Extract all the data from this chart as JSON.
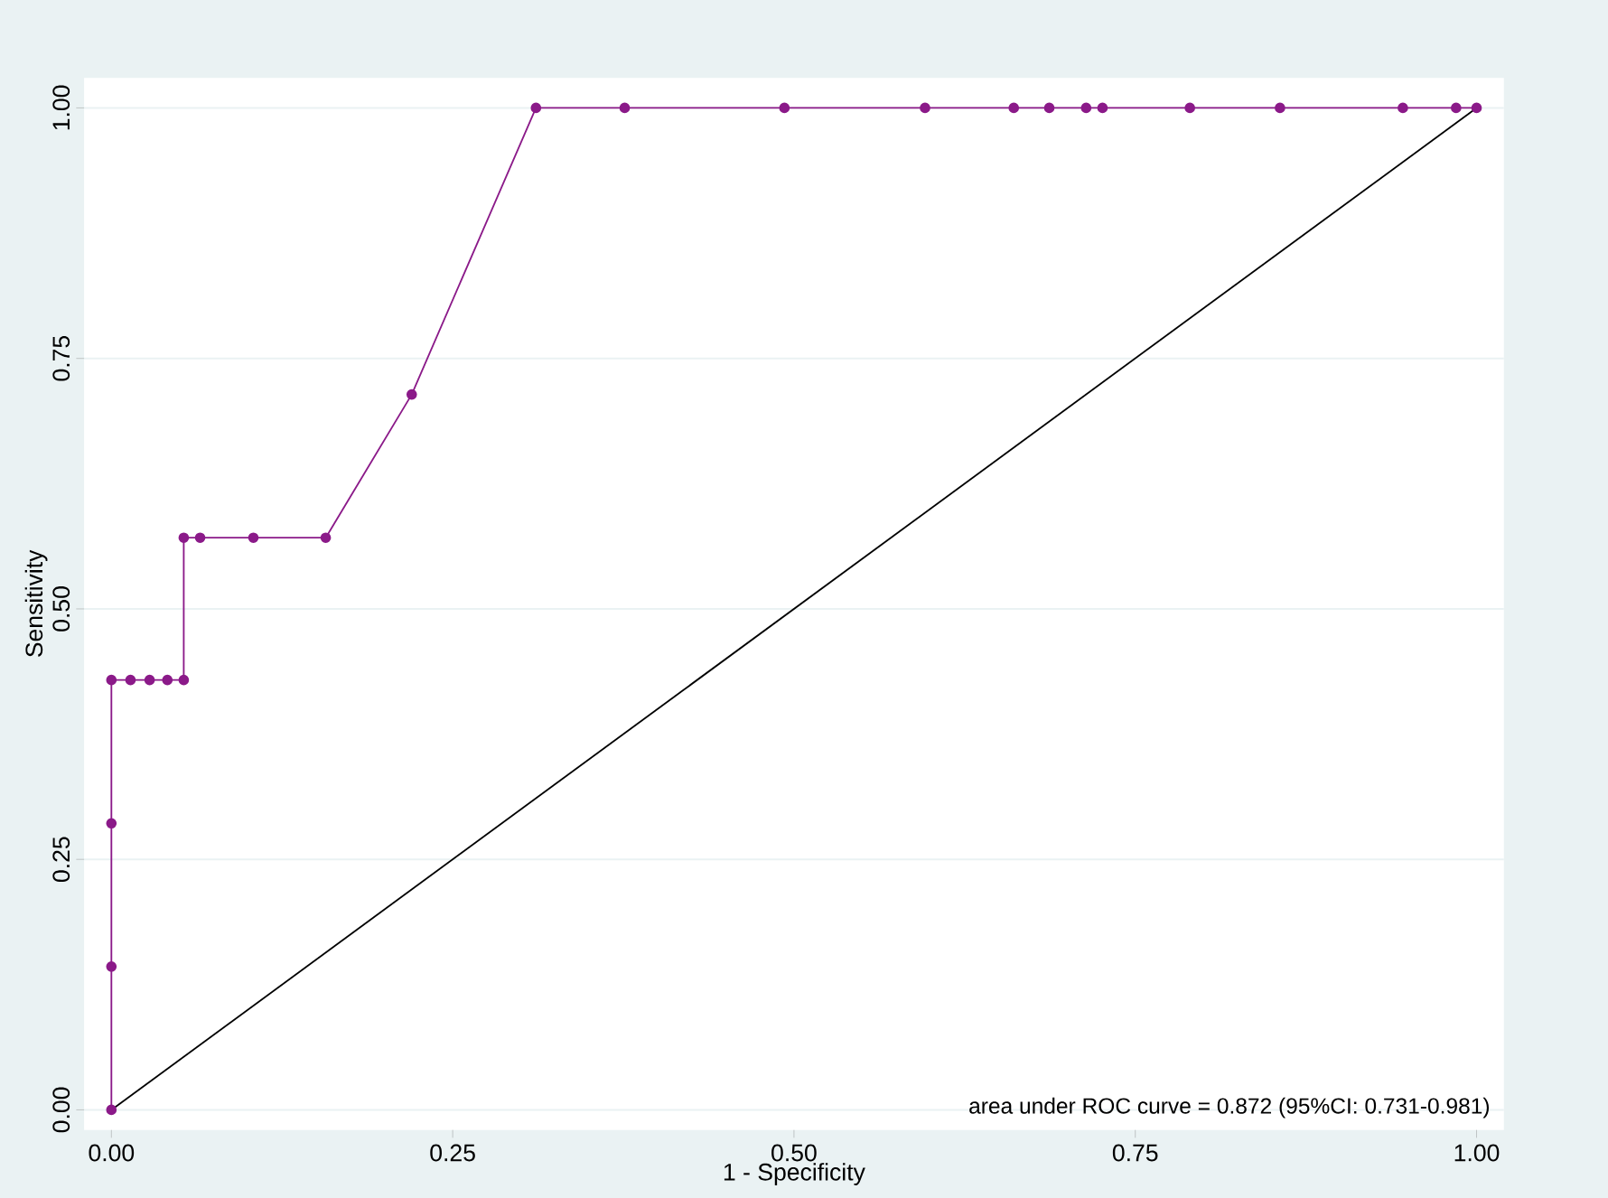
{
  "chart_data": {
    "type": "line",
    "xlabel": "1 - Specificity",
    "ylabel": "Sensitivity",
    "xlim": [
      -0.02,
      1.02
    ],
    "ylim": [
      -0.02,
      1.03
    ],
    "xticks": [
      {
        "value": 0,
        "label": "0.00"
      },
      {
        "value": 0.25,
        "label": "0.25"
      },
      {
        "value": 0.5,
        "label": "0.50"
      },
      {
        "value": 0.75,
        "label": "0.75"
      },
      {
        "value": 1,
        "label": "1.00"
      }
    ],
    "yticks": [
      {
        "value": 0,
        "label": "0.00"
      },
      {
        "value": 0.25,
        "label": "0.25"
      },
      {
        "value": 0.5,
        "label": "0.50"
      },
      {
        "value": 0.75,
        "label": "0.75"
      },
      {
        "value": 1,
        "label": "1.00"
      }
    ],
    "grid": "y",
    "annotations": [
      "area under ROC curve = 0.872 (95%CI: 0.731-0.981)"
    ],
    "series": [
      {
        "color": "#8b1a89",
        "marker": "circle",
        "x": [
          0,
          0,
          0,
          0,
          0.014,
          0.028,
          0.041,
          0.053,
          0.053,
          0.065,
          0.104,
          0.157,
          0.22,
          0.311,
          0.376,
          0.493,
          0.596,
          0.661,
          0.687,
          0.714,
          0.726,
          0.79,
          0.856,
          0.946,
          0.985,
          1.0
        ],
        "values": [
          0,
          0.143,
          0.286,
          0.429,
          0.429,
          0.429,
          0.429,
          0.429,
          0.571,
          0.571,
          0.571,
          0.571,
          0.714,
          1,
          1,
          1,
          1,
          1,
          1,
          1,
          1,
          1,
          1,
          1,
          1,
          1
        ]
      },
      {
        "color": "#000000",
        "marker": "none",
        "x": [
          0,
          1
        ],
        "values": [
          0,
          1
        ]
      }
    ]
  }
}
